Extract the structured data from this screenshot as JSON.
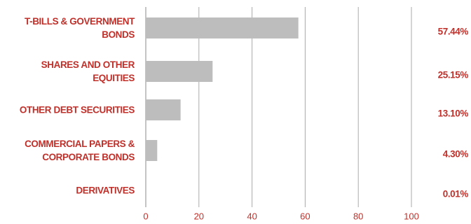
{
  "chart_data": {
    "type": "hbar",
    "categories": [
      "T-BILLS & GOVERNMENT\nBONDS",
      "SHARES AND OTHER\nEQUITIES",
      "OTHER DEBT SECURITIES",
      "COMMERCIAL PAPERS &\nCORPORATE BONDS",
      "DERIVATIVES"
    ],
    "values": [
      57.44,
      25.15,
      13.1,
      4.3,
      0.01
    ],
    "value_labels": [
      "57.44%",
      "25.15%",
      "13.10%",
      "4.30%",
      "0.01%"
    ],
    "color": "#bdbdbd",
    "label_color": "#c0302a",
    "xlim": [
      0,
      100
    ],
    "xticks": [
      0,
      20,
      40,
      60,
      80,
      100
    ],
    "grid": true
  }
}
